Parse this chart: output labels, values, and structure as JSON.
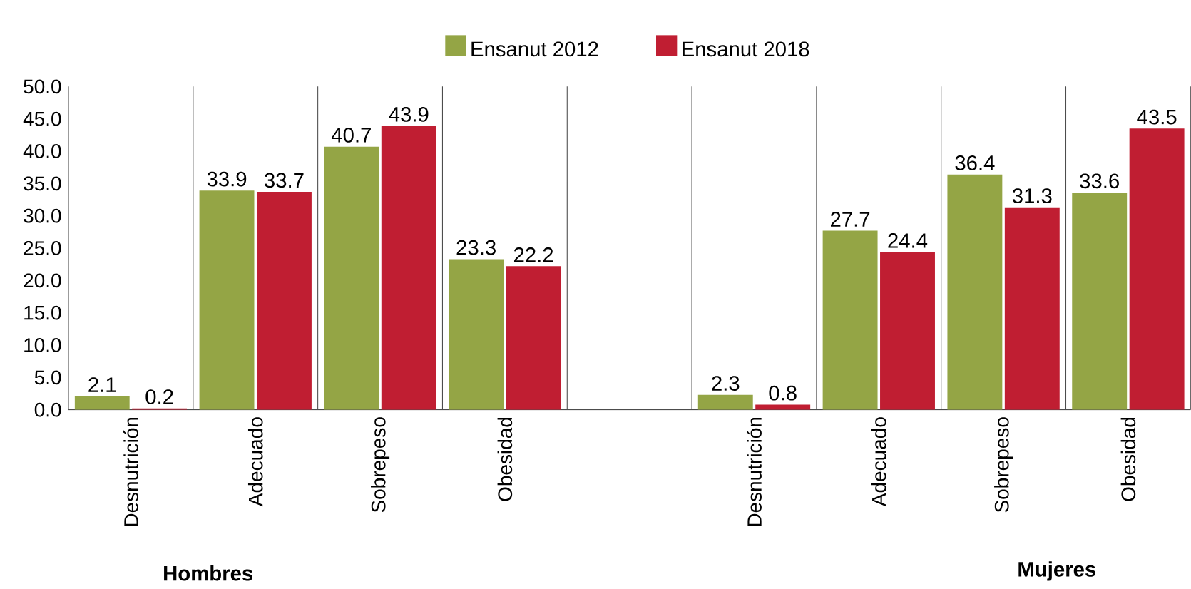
{
  "chart_data": {
    "type": "bar",
    "categories": [
      "Desnutrición",
      "Adecuado",
      "Sobrepeso",
      "Obesidad",
      null,
      "Desnutrición",
      "Adecuado",
      "Sobrepeso",
      "Obesidad"
    ],
    "series": [
      {
        "name": "Ensanut 2012",
        "color": "#94a545",
        "values": [
          2.1,
          33.9,
          40.7,
          23.3,
          null,
          2.3,
          27.7,
          36.4,
          33.6
        ],
        "value_labels": [
          "2.1",
          "33.9",
          "40.7",
          "23.3",
          null,
          "2.3",
          "27.7",
          "36.4",
          "33.6"
        ]
      },
      {
        "name": "Ensanut 2018",
        "color": "#c01e32",
        "values": [
          0.2,
          33.7,
          43.9,
          22.2,
          null,
          0.8,
          24.4,
          31.3,
          43.5
        ],
        "value_labels": [
          "0.2",
          "33.7",
          "43.9",
          "22.2",
          null,
          "0.8",
          "24.4",
          "31.3",
          "43.5"
        ]
      }
    ],
    "ylim": [
      0,
      50
    ],
    "yticks": [
      {
        "value": 0,
        "label": "0.0"
      },
      {
        "value": 5,
        "label": "5.0"
      },
      {
        "value": 10,
        "label": "10.0"
      },
      {
        "value": 15,
        "label": "15.0"
      },
      {
        "value": 20,
        "label": "20.0"
      },
      {
        "value": 25,
        "label": "25.0"
      },
      {
        "value": 30,
        "label": "30.0"
      },
      {
        "value": 35,
        "label": "35.0"
      },
      {
        "value": 40,
        "label": "40.0"
      },
      {
        "value": 45,
        "label": "45.0"
      },
      {
        "value": 50,
        "label": "50.0"
      }
    ],
    "grid": "x",
    "legend": "top",
    "annotations": [
      "Hombres",
      "Mujeres"
    ]
  }
}
